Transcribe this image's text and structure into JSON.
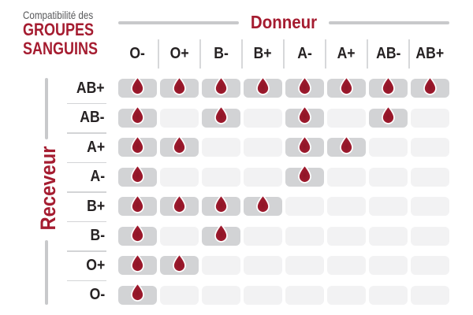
{
  "title": {
    "eyebrow": "Compatibilité des",
    "line1": "GROUPES",
    "line2": "SANGUINS"
  },
  "donor_axis_label": "Donneur",
  "receiver_axis_label": "Receveur",
  "colors": {
    "accent_red": "#a51c30",
    "drop_red_center": "#8e1526",
    "drop_red_edge": "#a81e34",
    "eyebrow_gray": "#58595b",
    "header_text": "#262223",
    "pill_filled": "#d2d3d5",
    "pill_empty": "#f2f2f3",
    "axis_line_gray": "#c8c9cb",
    "separator_gray": "#d7d8da"
  },
  "chart_data": {
    "type": "heatmap",
    "title": "Compatibilité des GROUPES SANGUINS",
    "x_axis_label": "Donneur",
    "y_axis_label": "Receveur",
    "columns": [
      "O-",
      "O+",
      "B-",
      "B+",
      "A-",
      "A+",
      "AB-",
      "AB+"
    ],
    "rows": [
      "AB+",
      "AB-",
      "A+",
      "A-",
      "B+",
      "B-",
      "O+",
      "O-"
    ],
    "matrix": [
      [
        1,
        1,
        1,
        1,
        1,
        1,
        1,
        1
      ],
      [
        1,
        0,
        1,
        0,
        1,
        0,
        1,
        0
      ],
      [
        1,
        1,
        0,
        0,
        1,
        1,
        0,
        0
      ],
      [
        1,
        0,
        0,
        0,
        1,
        0,
        0,
        0
      ],
      [
        1,
        1,
        1,
        1,
        0,
        0,
        0,
        0
      ],
      [
        1,
        0,
        1,
        0,
        0,
        0,
        0,
        0
      ],
      [
        1,
        1,
        0,
        0,
        0,
        0,
        0,
        0
      ],
      [
        1,
        0,
        0,
        0,
        0,
        0,
        0,
        0
      ]
    ],
    "cell_marker": "blood-drop",
    "legend": null
  }
}
